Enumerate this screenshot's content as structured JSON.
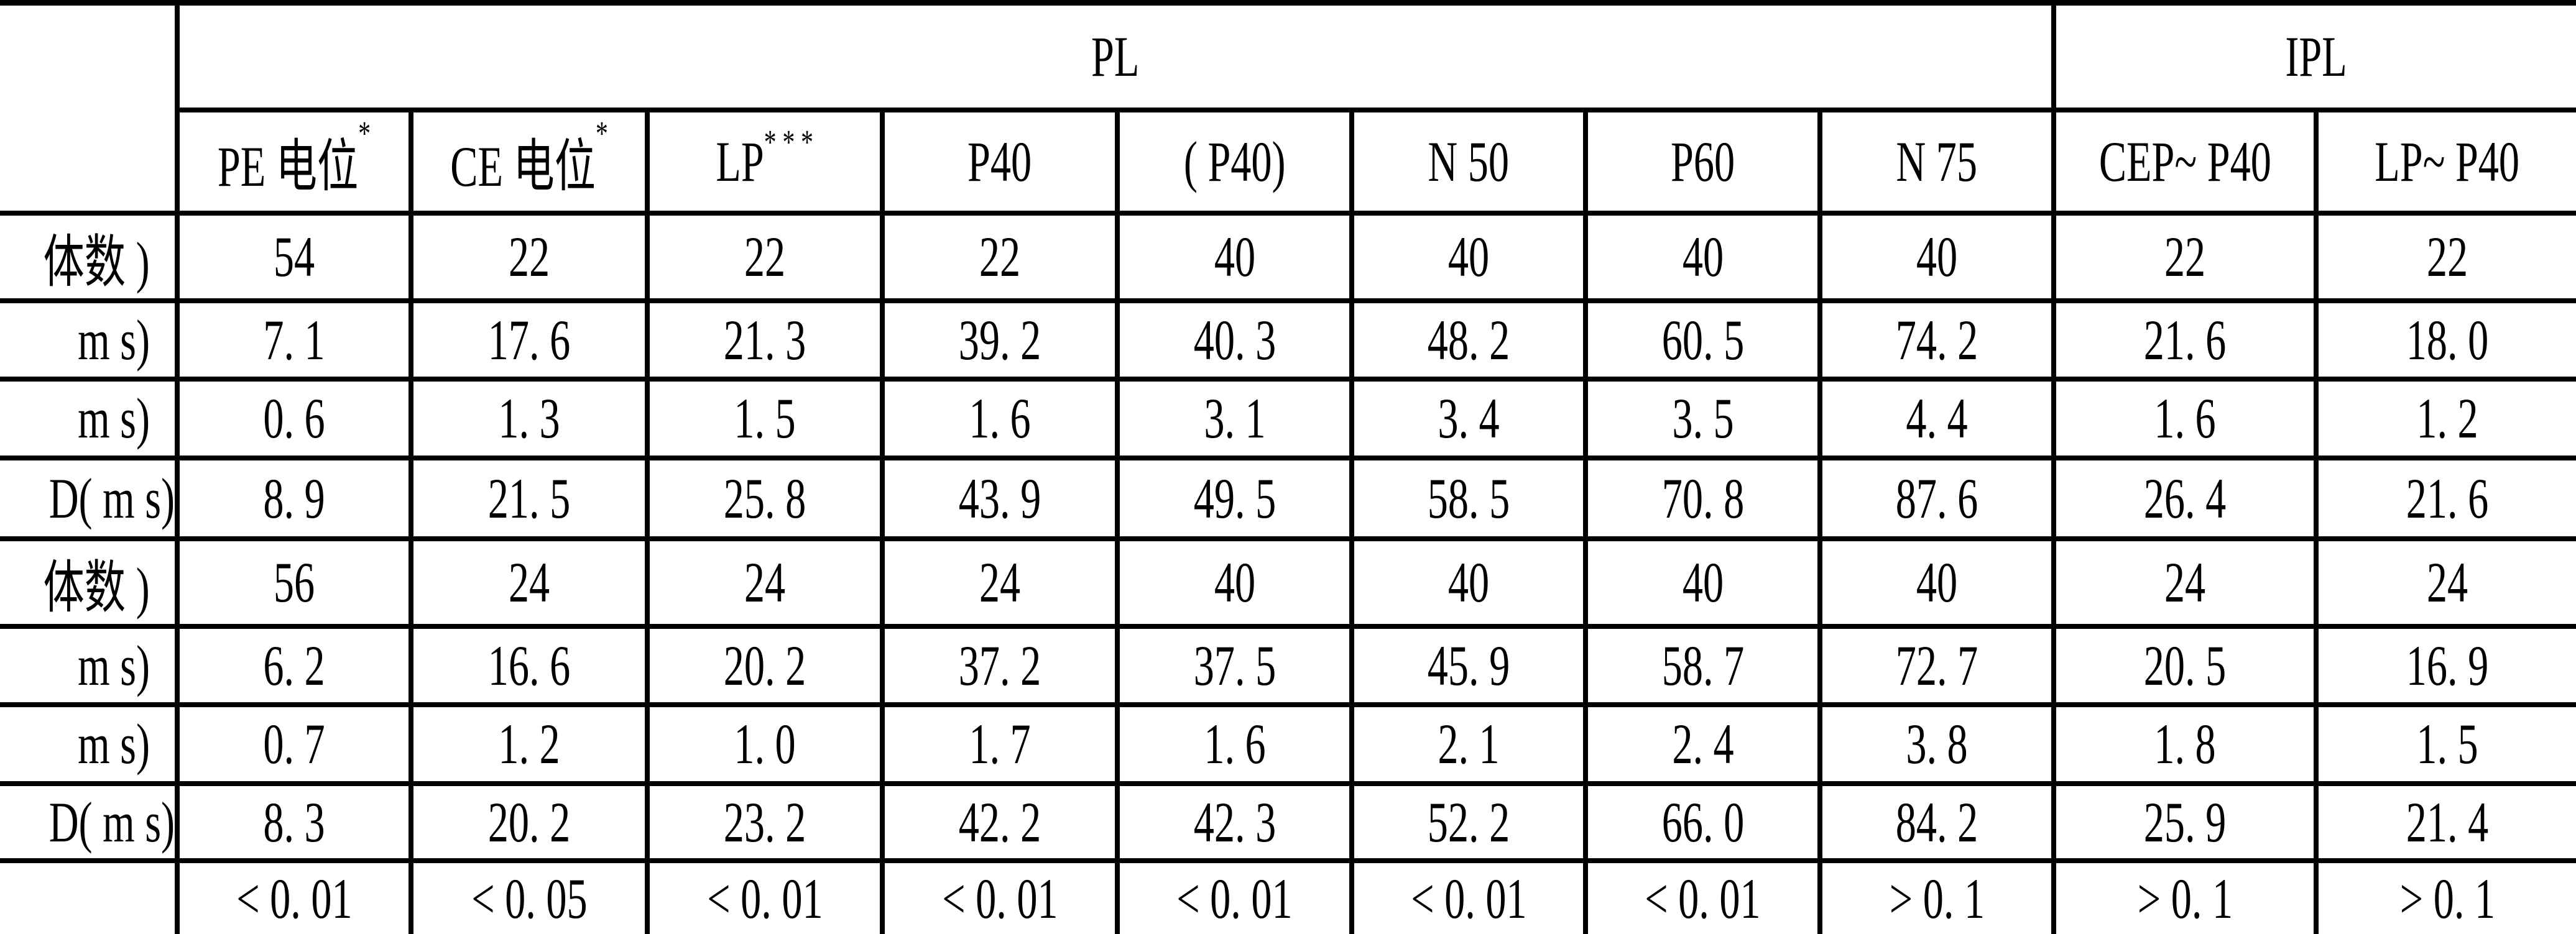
{
  "table": {
    "group_headers": [
      "PL",
      "IPL"
    ],
    "columns": [
      {
        "label": "PE 电位",
        "mark": "*"
      },
      {
        "label": "CE 电位",
        "mark": "*"
      },
      {
        "label": "LP",
        "mark": "* * *"
      },
      {
        "label": "P40",
        "mark": ""
      },
      {
        "label": "( P40)",
        "mark": ""
      },
      {
        "label": "N 50",
        "mark": ""
      },
      {
        "label": "P60",
        "mark": ""
      },
      {
        "label": "N 75",
        "mark": ""
      },
      {
        "label": "CEP~ P40",
        "mark": ""
      },
      {
        "label": "LP~ P40",
        "mark": ""
      }
    ],
    "rows": [
      {
        "label": "体数 )",
        "cells": [
          "54",
          "22",
          "22",
          "22",
          "40",
          "40",
          "40",
          "40",
          "22",
          "22"
        ]
      },
      {
        "label": "m s)",
        "cells": [
          "7. 1",
          "17. 6",
          "21. 3",
          "39. 2",
          "40. 3",
          "48. 2",
          "60. 5",
          "74. 2",
          "21. 6",
          "18. 0"
        ]
      },
      {
        "label": "m s)",
        "cells": [
          "0. 6",
          "1. 3",
          "1. 5",
          "1. 6",
          "3. 1",
          "3. 4",
          "3. 5",
          "4. 4",
          "1. 6",
          "1. 2"
        ]
      },
      {
        "label": "D( m s)",
        "cells": [
          "8. 9",
          "21. 5",
          "25. 8",
          "43. 9",
          "49. 5",
          "58. 5",
          "70. 8",
          "87. 6",
          "26. 4",
          "21. 6"
        ]
      },
      {
        "label": "体数 )",
        "cells": [
          "56",
          "24",
          "24",
          "24",
          "40",
          "40",
          "40",
          "40",
          "24",
          "24"
        ]
      },
      {
        "label": "m s)",
        "cells": [
          "6. 2",
          "16. 6",
          "20. 2",
          "37. 2",
          "37. 5",
          "45. 9",
          "58. 7",
          "72. 7",
          "20. 5",
          "16. 9"
        ]
      },
      {
        "label": "m s)",
        "cells": [
          "0. 7",
          "1. 2",
          "1. 0",
          "1. 7",
          "1. 6",
          "2. 1",
          "2. 4",
          "3. 8",
          "1. 8",
          "1. 5"
        ]
      },
      {
        "label": "D( m s)",
        "cells": [
          "8. 3",
          "20. 2",
          "23. 2",
          "42. 2",
          "42. 3",
          "52. 2",
          "66. 0",
          "84. 2",
          "25. 9",
          "21. 4"
        ]
      },
      {
        "label": "",
        "cells": [
          "< 0. 01",
          "< 0. 05",
          "< 0. 01",
          "< 0. 01",
          "< 0. 01",
          "< 0. 01",
          "< 0. 01",
          "> 0. 1",
          "> 0. 1",
          "> 0. 1"
        ]
      }
    ]
  }
}
